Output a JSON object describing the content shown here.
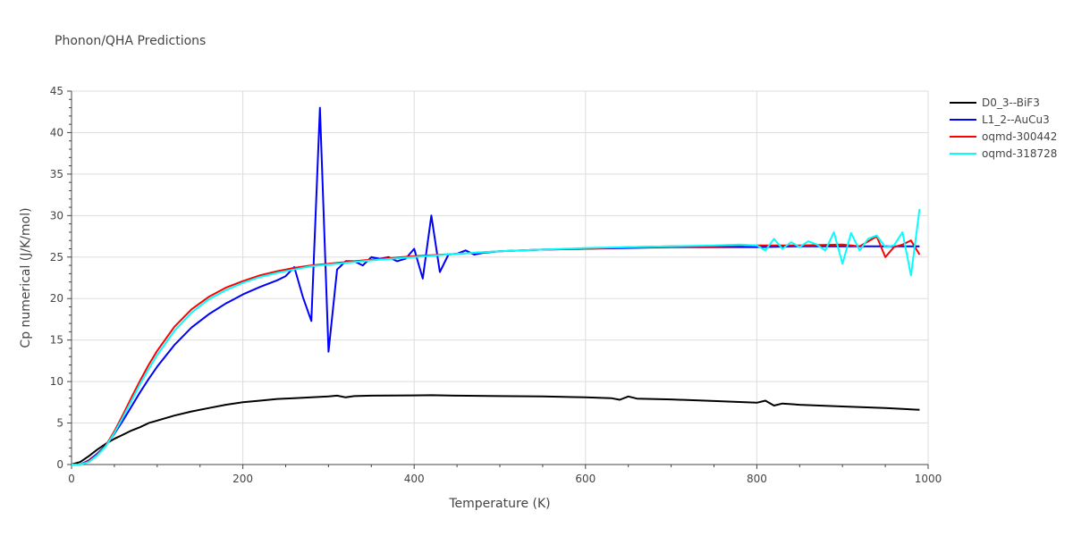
{
  "chart_data": {
    "type": "line",
    "title": "Phonon/QHA Predictions",
    "xlabel": "Temperature (K)",
    "ylabel": "Cp numerical (J/K/mol)",
    "xlim": [
      0,
      1000
    ],
    "ylim": [
      0,
      45
    ],
    "x_ticks": [
      0,
      200,
      400,
      600,
      800,
      1000
    ],
    "y_ticks": [
      0,
      5,
      10,
      15,
      20,
      25,
      30,
      35,
      40,
      45
    ],
    "grid": true,
    "legend_position": "top-right",
    "series": [
      {
        "name": "D0_3--BiF3",
        "color": "#000000",
        "x": [
          0,
          10,
          20,
          30,
          40,
          50,
          60,
          70,
          80,
          90,
          100,
          120,
          140,
          160,
          180,
          200,
          220,
          240,
          260,
          280,
          300,
          310,
          320,
          330,
          350,
          400,
          420,
          450,
          500,
          550,
          600,
          630,
          640,
          650,
          660,
          700,
          750,
          800,
          810,
          820,
          830,
          850,
          900,
          950,
          990
        ],
        "y": [
          0,
          0.3,
          1.0,
          1.8,
          2.5,
          3.1,
          3.6,
          4.1,
          4.5,
          5.0,
          5.3,
          5.9,
          6.4,
          6.8,
          7.2,
          7.5,
          7.7,
          7.9,
          8.0,
          8.1,
          8.2,
          8.3,
          8.1,
          8.25,
          8.3,
          8.33,
          8.35,
          8.3,
          8.25,
          8.2,
          8.1,
          8.0,
          7.8,
          8.2,
          7.95,
          7.85,
          7.65,
          7.45,
          7.7,
          7.1,
          7.35,
          7.2,
          7.0,
          6.8,
          6.6
        ]
      },
      {
        "name": "L1_2--AuCu3",
        "color": "#0000ff",
        "x": [
          0,
          10,
          20,
          30,
          40,
          50,
          60,
          70,
          80,
          90,
          100,
          120,
          140,
          160,
          180,
          200,
          220,
          240,
          250,
          260,
          270,
          280,
          290,
          300,
          310,
          320,
          330,
          340,
          350,
          360,
          370,
          380,
          390,
          400,
          410,
          420,
          430,
          440,
          450,
          460,
          470,
          480,
          500,
          550,
          600,
          650,
          700,
          750,
          800,
          850,
          900,
          950,
          990
        ],
        "y": [
          0,
          0,
          0.5,
          1.3,
          2.3,
          3.7,
          5.3,
          7.0,
          8.7,
          10.3,
          11.8,
          14.4,
          16.5,
          18.1,
          19.4,
          20.5,
          21.4,
          22.2,
          22.7,
          23.8,
          20.2,
          17.3,
          43.0,
          13.6,
          23.5,
          24.5,
          24.5,
          24.0,
          25.0,
          24.8,
          25.0,
          24.5,
          24.8,
          26.0,
          22.4,
          30.0,
          23.2,
          25.3,
          25.4,
          25.8,
          25.3,
          25.5,
          25.7,
          25.9,
          26.0,
          26.1,
          26.2,
          26.2,
          26.2,
          26.3,
          26.3,
          26.3,
          26.3
        ]
      },
      {
        "name": "oqmd-300442",
        "color": "#ff0000",
        "x": [
          0,
          10,
          20,
          30,
          40,
          50,
          60,
          70,
          80,
          90,
          100,
          120,
          140,
          160,
          180,
          200,
          220,
          240,
          260,
          280,
          300,
          350,
          400,
          450,
          500,
          550,
          600,
          650,
          700,
          750,
          800,
          850,
          900,
          920,
          940,
          950,
          960,
          970,
          980,
          990
        ],
        "y": [
          0,
          0,
          0.4,
          1.2,
          2.3,
          4.0,
          6.0,
          8.1,
          10.1,
          12.0,
          13.7,
          16.6,
          18.7,
          20.2,
          21.3,
          22.1,
          22.8,
          23.3,
          23.7,
          24.0,
          24.2,
          24.7,
          25.1,
          25.4,
          25.7,
          25.9,
          26.0,
          26.2,
          26.3,
          26.3,
          26.4,
          26.4,
          26.5,
          26.3,
          27.5,
          25.0,
          26.2,
          26.5,
          27.0,
          25.3
        ]
      },
      {
        "name": "oqmd-318728",
        "color": "#00ffff",
        "x": [
          0,
          10,
          20,
          30,
          40,
          50,
          60,
          70,
          80,
          90,
          100,
          120,
          140,
          160,
          180,
          200,
          220,
          240,
          260,
          280,
          300,
          350,
          400,
          450,
          500,
          550,
          600,
          650,
          700,
          750,
          780,
          800,
          810,
          820,
          830,
          840,
          850,
          860,
          870,
          880,
          890,
          900,
          910,
          920,
          930,
          940,
          950,
          960,
          970,
          980,
          990
        ],
        "y": [
          0,
          0,
          0.3,
          1.1,
          2.2,
          3.8,
          5.7,
          7.7,
          9.7,
          11.5,
          13.2,
          16.1,
          18.3,
          19.9,
          21.0,
          21.9,
          22.6,
          23.1,
          23.5,
          23.9,
          24.1,
          24.6,
          25.0,
          25.4,
          25.7,
          25.9,
          26.1,
          26.2,
          26.3,
          26.4,
          26.5,
          26.4,
          25.8,
          27.2,
          26.0,
          26.8,
          26.2,
          26.9,
          26.5,
          25.8,
          28.0,
          24.2,
          27.9,
          25.8,
          27.2,
          27.6,
          26.2,
          26.4,
          28.0,
          22.8,
          30.8
        ]
      }
    ]
  }
}
